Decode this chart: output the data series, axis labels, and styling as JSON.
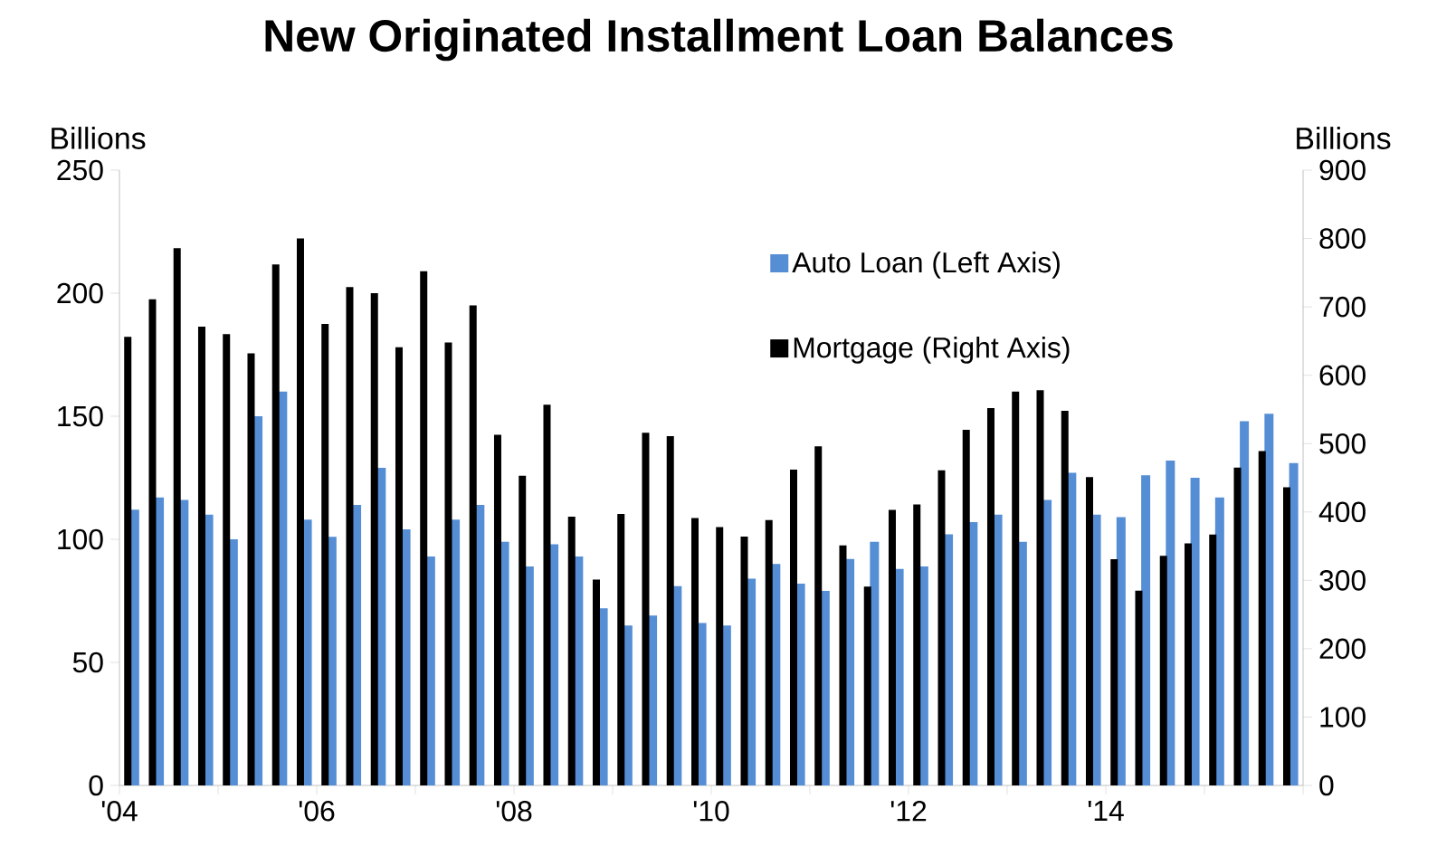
{
  "chart_data": {
    "type": "bar",
    "title": "New Originated Installment Loan Balances",
    "ylabel": "Billions",
    "y2label": "Billions",
    "x": [
      2004.125,
      2004.375,
      2004.625,
      2004.875,
      2005.125,
      2005.375,
      2005.625,
      2005.875,
      2006.125,
      2006.375,
      2006.625,
      2006.875,
      2007.125,
      2007.375,
      2007.625,
      2007.875,
      2008.125,
      2008.375,
      2008.625,
      2008.875,
      2009.125,
      2009.375,
      2009.625,
      2009.875,
      2010.125,
      2010.375,
      2010.625,
      2010.875,
      2011.125,
      2011.375,
      2011.625,
      2011.875,
      2012.125,
      2012.375,
      2012.625,
      2012.875,
      2013.125,
      2013.375,
      2013.625,
      2013.875,
      2014.125,
      2014.375,
      2014.625,
      2014.875,
      2015.125,
      2015.375,
      2015.625,
      2015.875
    ],
    "series": [
      {
        "name": "Auto Loan (Left Axis)",
        "color": "#558ed5",
        "values": [
          112,
          117,
          116,
          110,
          100,
          150,
          160,
          108,
          101,
          114,
          129,
          104,
          93,
          108,
          114,
          99,
          89,
          98,
          93,
          72,
          65,
          69,
          81,
          66,
          65,
          84,
          90,
          82,
          79,
          92,
          99,
          88,
          89,
          102,
          107,
          110,
          99,
          116,
          127,
          110,
          109,
          126,
          132,
          125,
          117,
          148,
          151,
          131
        ]
      },
      {
        "name": "Mortgage (Right Axis)",
        "color": "#000000",
        "axis": "y2",
        "values": [
          656,
          711,
          786,
          671,
          660,
          632,
          762,
          800,
          675,
          729,
          720,
          641,
          752,
          648,
          702,
          513,
          453,
          557,
          393,
          301,
          397,
          516,
          511,
          391,
          378,
          364,
          388,
          462,
          496,
          351,
          291,
          403,
          411,
          461,
          520,
          552,
          576,
          578,
          548,
          451,
          331,
          285,
          336,
          354,
          367,
          465,
          489,
          436
        ]
      }
    ],
    "xlim": [
      2004,
      2016
    ],
    "xticks": [
      {
        "value": 2004,
        "label": "'04"
      },
      {
        "value": 2005,
        "label": null
      },
      {
        "value": 2006,
        "label": "'06"
      },
      {
        "value": 2007,
        "label": null
      },
      {
        "value": 2008,
        "label": "'08"
      },
      {
        "value": 2009,
        "label": null
      },
      {
        "value": 2010,
        "label": "'10"
      },
      {
        "value": 2011,
        "label": null
      },
      {
        "value": 2012,
        "label": "'12"
      },
      {
        "value": 2013,
        "label": null
      },
      {
        "value": 2014,
        "label": "'14"
      },
      {
        "value": 2015,
        "label": null
      },
      {
        "value": 2016,
        "label": null
      }
    ],
    "ylim": [
      0,
      250
    ],
    "yticks": [
      0,
      50,
      100,
      150,
      200,
      250
    ],
    "y2lim": [
      0,
      900
    ],
    "y2ticks": [
      0,
      100,
      200,
      300,
      400,
      500,
      600,
      700,
      800,
      900
    ],
    "legend": "top right"
  }
}
